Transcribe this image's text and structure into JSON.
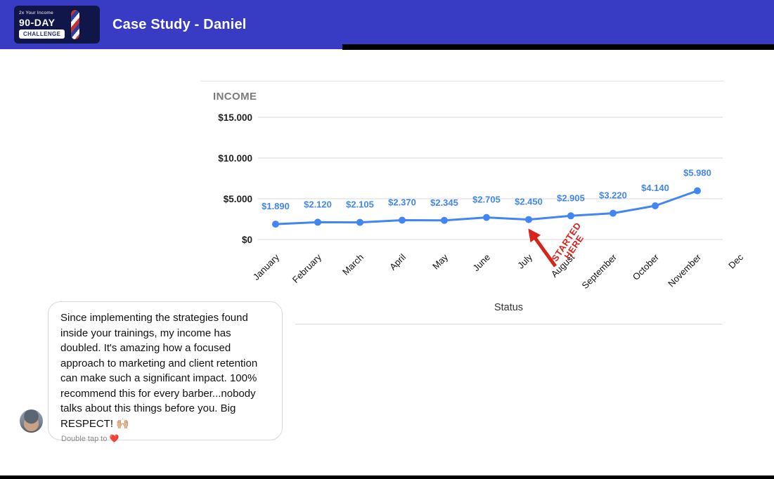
{
  "header": {
    "title": "Case Study - Daniel",
    "logo": {
      "line1": "2x Your Income",
      "line2": "90-DAY",
      "line3": "CHALLENGE"
    }
  },
  "status": {
    "label": "Status"
  },
  "annotation": {
    "line1": "STARTED",
    "line2": "HERE"
  },
  "testimonial": {
    "text": "Since implementing the strategies found inside your trainings, my income has doubled. It's amazing how a focused approach to marketing and client retention can make such a significant impact. 100% recommend this for every barber...nobody talks about this things before you. Big RESPECT! 🙌🏼",
    "double_tap": "Double tap to",
    "heart": "❤️"
  },
  "colors": {
    "header_bg": "#383cc4",
    "chart_line": "#4285f4",
    "annotation_red": "#d7241d",
    "heart_red": "#e3262c",
    "grid": "#dadada"
  },
  "chart_data": {
    "type": "line",
    "title": "INCOME",
    "categories": [
      "January",
      "February",
      "March",
      "April",
      "May",
      "June",
      "July",
      "August",
      "September",
      "October",
      "November",
      "Dec"
    ],
    "series": [
      {
        "name": "Income",
        "values": [
          1890,
          2120,
          2105,
          2370,
          2345,
          2705,
          2450,
          2905,
          3220,
          4140,
          5980
        ]
      }
    ],
    "point_labels": [
      "$1.890",
      "$2.120",
      "$2.105",
      "$2.370",
      "$2.345",
      "$2.705",
      "$2.450",
      "$2.905",
      "$3.220",
      "$4.140",
      "$5.980"
    ],
    "y_ticks": [
      {
        "value": 0,
        "label": "$0"
      },
      {
        "value": 5000,
        "label": "$5.000"
      },
      {
        "value": 10000,
        "label": "$10.000"
      },
      {
        "value": 15000,
        "label": "$15.000"
      }
    ],
    "ylim": [
      0,
      15000
    ],
    "xlabel": "",
    "ylabel": "",
    "grid": true,
    "legend": "none",
    "line_color": "#4285f4",
    "grid_color": "#dadada",
    "annotation": {
      "text": "STARTED HERE",
      "target_month": "July",
      "color": "#d7241d"
    }
  }
}
